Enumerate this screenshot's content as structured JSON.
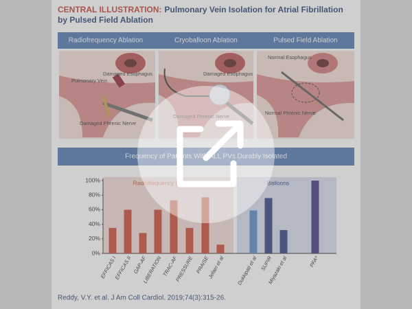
{
  "header": {
    "label": "CENTRAL ILLUSTRATION:",
    "title": "Pulmonary Vein Isolation for Atrial Fibrillation",
    "title_line2": "by Pulsed Field Ablation"
  },
  "panels": [
    {
      "title": "Radiofrequency Ablation",
      "labels": [
        "Damaged Esophagus",
        "Pulmonary Vein",
        "Damaged Phrenic Nerve"
      ]
    },
    {
      "title": "Cryoballoon Ablation",
      "labels": [
        "Damaged Esophagus",
        "Damaged Phrenic Nerve"
      ]
    },
    {
      "title": "Pulsed Field Ablation",
      "labels": [
        "Normal Esophagus",
        "Normal Phrenic Nerve"
      ]
    }
  ],
  "chart_data": {
    "type": "bar",
    "title": "Frequency of Patients With ALL PVs Durably Isolated",
    "categories": [
      "EFFICAS I",
      "EFFICAS II",
      "GAP-AF",
      "LIBERATION",
      "TRAC-AF",
      "PRESSURE",
      "PRAISE",
      "Jefairi et al",
      "Dukkipati et al",
      "SUPIR",
      "Miyazaki et al",
      "PFA*"
    ],
    "values": [
      35,
      60,
      28,
      60,
      73,
      35,
      77,
      12,
      59,
      76,
      32,
      100
    ],
    "colors": [
      "#c8452e",
      "#c8452e",
      "#c8452e",
      "#c8452e",
      "#c8452e",
      "#c8452e",
      "#c8452e",
      "#c8452e",
      "#4f86c6",
      "#2a3a80",
      "#2a3a80",
      "#3d2f80"
    ],
    "groups": [
      "Radiofrequency Energy",
      "Balloons"
    ],
    "ylim": [
      0,
      100
    ],
    "yticks": [
      {
        "value": 0,
        "label": "0%"
      },
      {
        "value": 20,
        "label": "20%"
      },
      {
        "value": 40,
        "label": "40%"
      },
      {
        "value": 60,
        "label": "60%"
      },
      {
        "value": 80,
        "label": "80%"
      },
      {
        "value": 100,
        "label": "100%"
      }
    ]
  },
  "citation": "Reddy, V.Y. et al. J Am Coll Cardiol. 2019;74(3):315-26."
}
